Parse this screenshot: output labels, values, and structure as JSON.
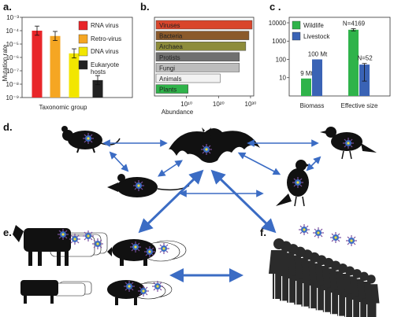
{
  "panels": {
    "a": "a.",
    "b": "b.",
    "c": "c .",
    "d": "d.",
    "e": "e.",
    "f": "f."
  },
  "chart_data": [
    {
      "type": "bar",
      "panel": "a",
      "scale": "log",
      "ylabel": "Mutation rate",
      "xlabel": "Taxonomic group",
      "ylim": [
        1e-09,
        0.001
      ],
      "ytick_labels": [
        "10⁻³",
        "10⁻⁴",
        "10⁻⁵",
        "10⁻⁶",
        "10⁻⁷",
        "10⁻⁸",
        "10⁻⁹"
      ],
      "categories": [
        "RNA virus",
        "Retro-virus",
        "DNA virus",
        "Eukaryote hosts"
      ],
      "values": [
        0.0001,
        4e-05,
        2e-06,
        2e-08
      ],
      "colors": [
        "#e8262a",
        "#f5a623",
        "#f2e600",
        "#222222"
      ],
      "legend": [
        "RNA virus",
        "Retro-virus",
        "DNA virus",
        "Eukaryote hosts"
      ]
    },
    {
      "type": "bar",
      "panel": "b",
      "orientation": "horizontal",
      "scale": "log",
      "xlabel": "Abundance",
      "xtick_labels": [
        "10¹⁰",
        "10²⁰",
        "10³⁰"
      ],
      "xlim": [
        1,
        1e+31
      ],
      "categories": [
        "Viruses",
        "Bacteria",
        "Archaea",
        "Protists",
        "Fungi",
        "Animals",
        "Plants"
      ],
      "values": [
        1e+31,
        1e+30,
        1e+29,
        1e+27,
        1e+27,
        1e+21,
        100000000000.0
      ],
      "colors": [
        "#d9452b",
        "#8b5a2b",
        "#8d8c3a",
        "#707070",
        "#bdbdbd",
        "#f2f2f2",
        "#2fb34a"
      ]
    },
    {
      "type": "bar",
      "panel": "c",
      "scale": "log",
      "ytick_labels": [
        "10000",
        "1000",
        "100",
        "10"
      ],
      "ylim": [
        1,
        20000
      ],
      "categories": [
        "Biomass",
        "Effective size"
      ],
      "series": [
        {
          "name": "Wildlife",
          "color": "#2fb34a",
          "values": [
            9,
            4169
          ]
        },
        {
          "name": "Livestock",
          "color": "#3a63b5",
          "values": [
            100,
            52
          ]
        }
      ],
      "value_labels": [
        "9 Mt",
        "100 Mt",
        "N=4169",
        "N=52"
      ]
    }
  ],
  "icons": {
    "virus": "virus-icon",
    "mouse": "mouse-icon",
    "rat": "rat-icon",
    "bat": "bat-icon",
    "bird": "bird-icon",
    "pigeon": "pigeon-icon",
    "cow": "cow-icon",
    "pig": "pig-icon",
    "human": "human-icon"
  }
}
